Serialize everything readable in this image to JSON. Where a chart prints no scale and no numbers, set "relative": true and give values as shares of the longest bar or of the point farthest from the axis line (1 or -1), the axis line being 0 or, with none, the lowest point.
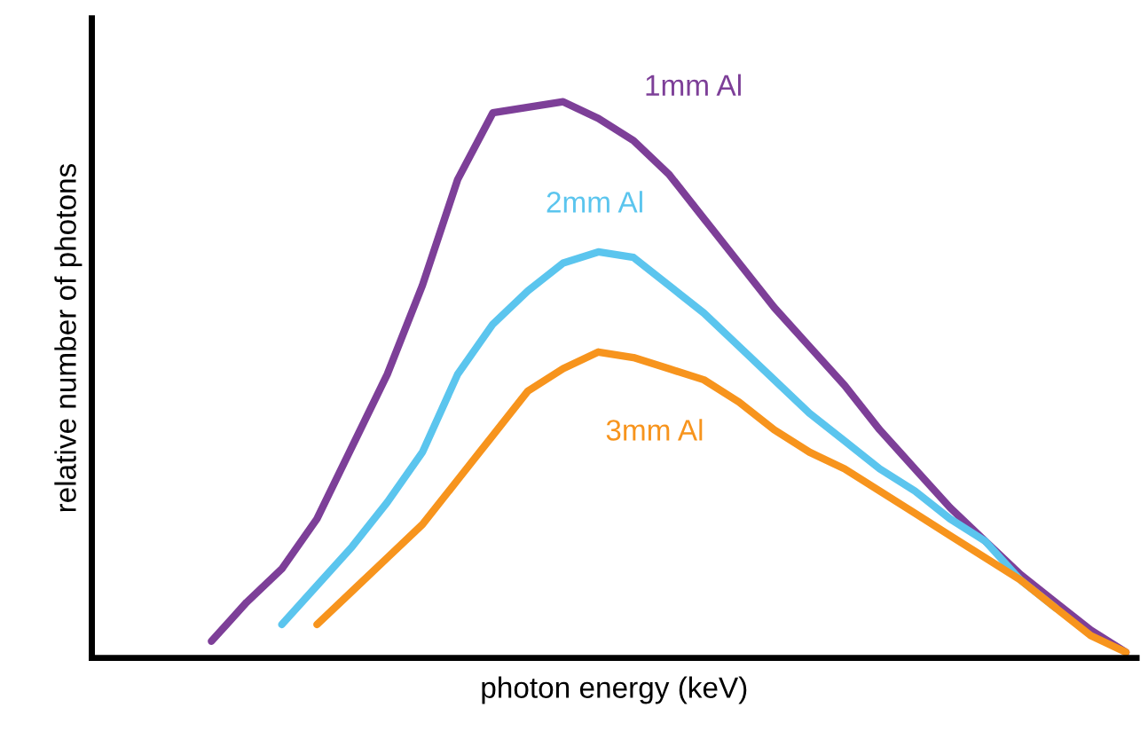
{
  "chart_data": {
    "type": "line",
    "relative": true,
    "xlabel": "photon energy (keV)",
    "ylabel": "relative number of photons",
    "categories": [
      null,
      null,
      null,
      null,
      null,
      null,
      null,
      null,
      null,
      null,
      null,
      null,
      null,
      null,
      null,
      null,
      null,
      null,
      null,
      null,
      null,
      null,
      null,
      null,
      null,
      null,
      null,
      null,
      null,
      null
    ],
    "series": [
      {
        "name": "1mm Al",
        "color": "#7d3f98",
        "values": [
          null,
          null,
          null,
          0.03,
          0.1,
          0.16,
          0.25,
          0.38,
          0.51,
          0.67,
          0.86,
          0.98,
          0.99,
          1.0,
          0.97,
          0.93,
          0.87,
          0.79,
          0.71,
          0.63,
          0.56,
          0.49,
          0.41,
          0.34,
          0.27,
          0.21,
          0.15,
          0.1,
          0.05,
          0.01
        ]
      },
      {
        "name": "2mm Al",
        "color": "#5bc5ee",
        "values": [
          null,
          null,
          null,
          null,
          null,
          0.06,
          0.13,
          0.2,
          0.28,
          0.37,
          0.51,
          0.6,
          0.66,
          0.71,
          0.73,
          0.72,
          0.67,
          0.62,
          0.56,
          0.5,
          0.44,
          0.39,
          0.34,
          0.3,
          0.25,
          0.21,
          0.14,
          0.09,
          null,
          null
        ]
      },
      {
        "name": "3mm Al",
        "color": "#f7941d",
        "values": [
          null,
          null,
          null,
          null,
          null,
          null,
          0.06,
          0.12,
          0.18,
          0.24,
          0.32,
          0.4,
          0.48,
          0.52,
          0.55,
          0.54,
          0.52,
          0.5,
          0.46,
          0.41,
          0.37,
          0.34,
          0.3,
          0.26,
          0.22,
          0.18,
          0.14,
          0.09,
          0.04,
          0.01
        ]
      }
    ],
    "grid": false,
    "legend": false
  }
}
